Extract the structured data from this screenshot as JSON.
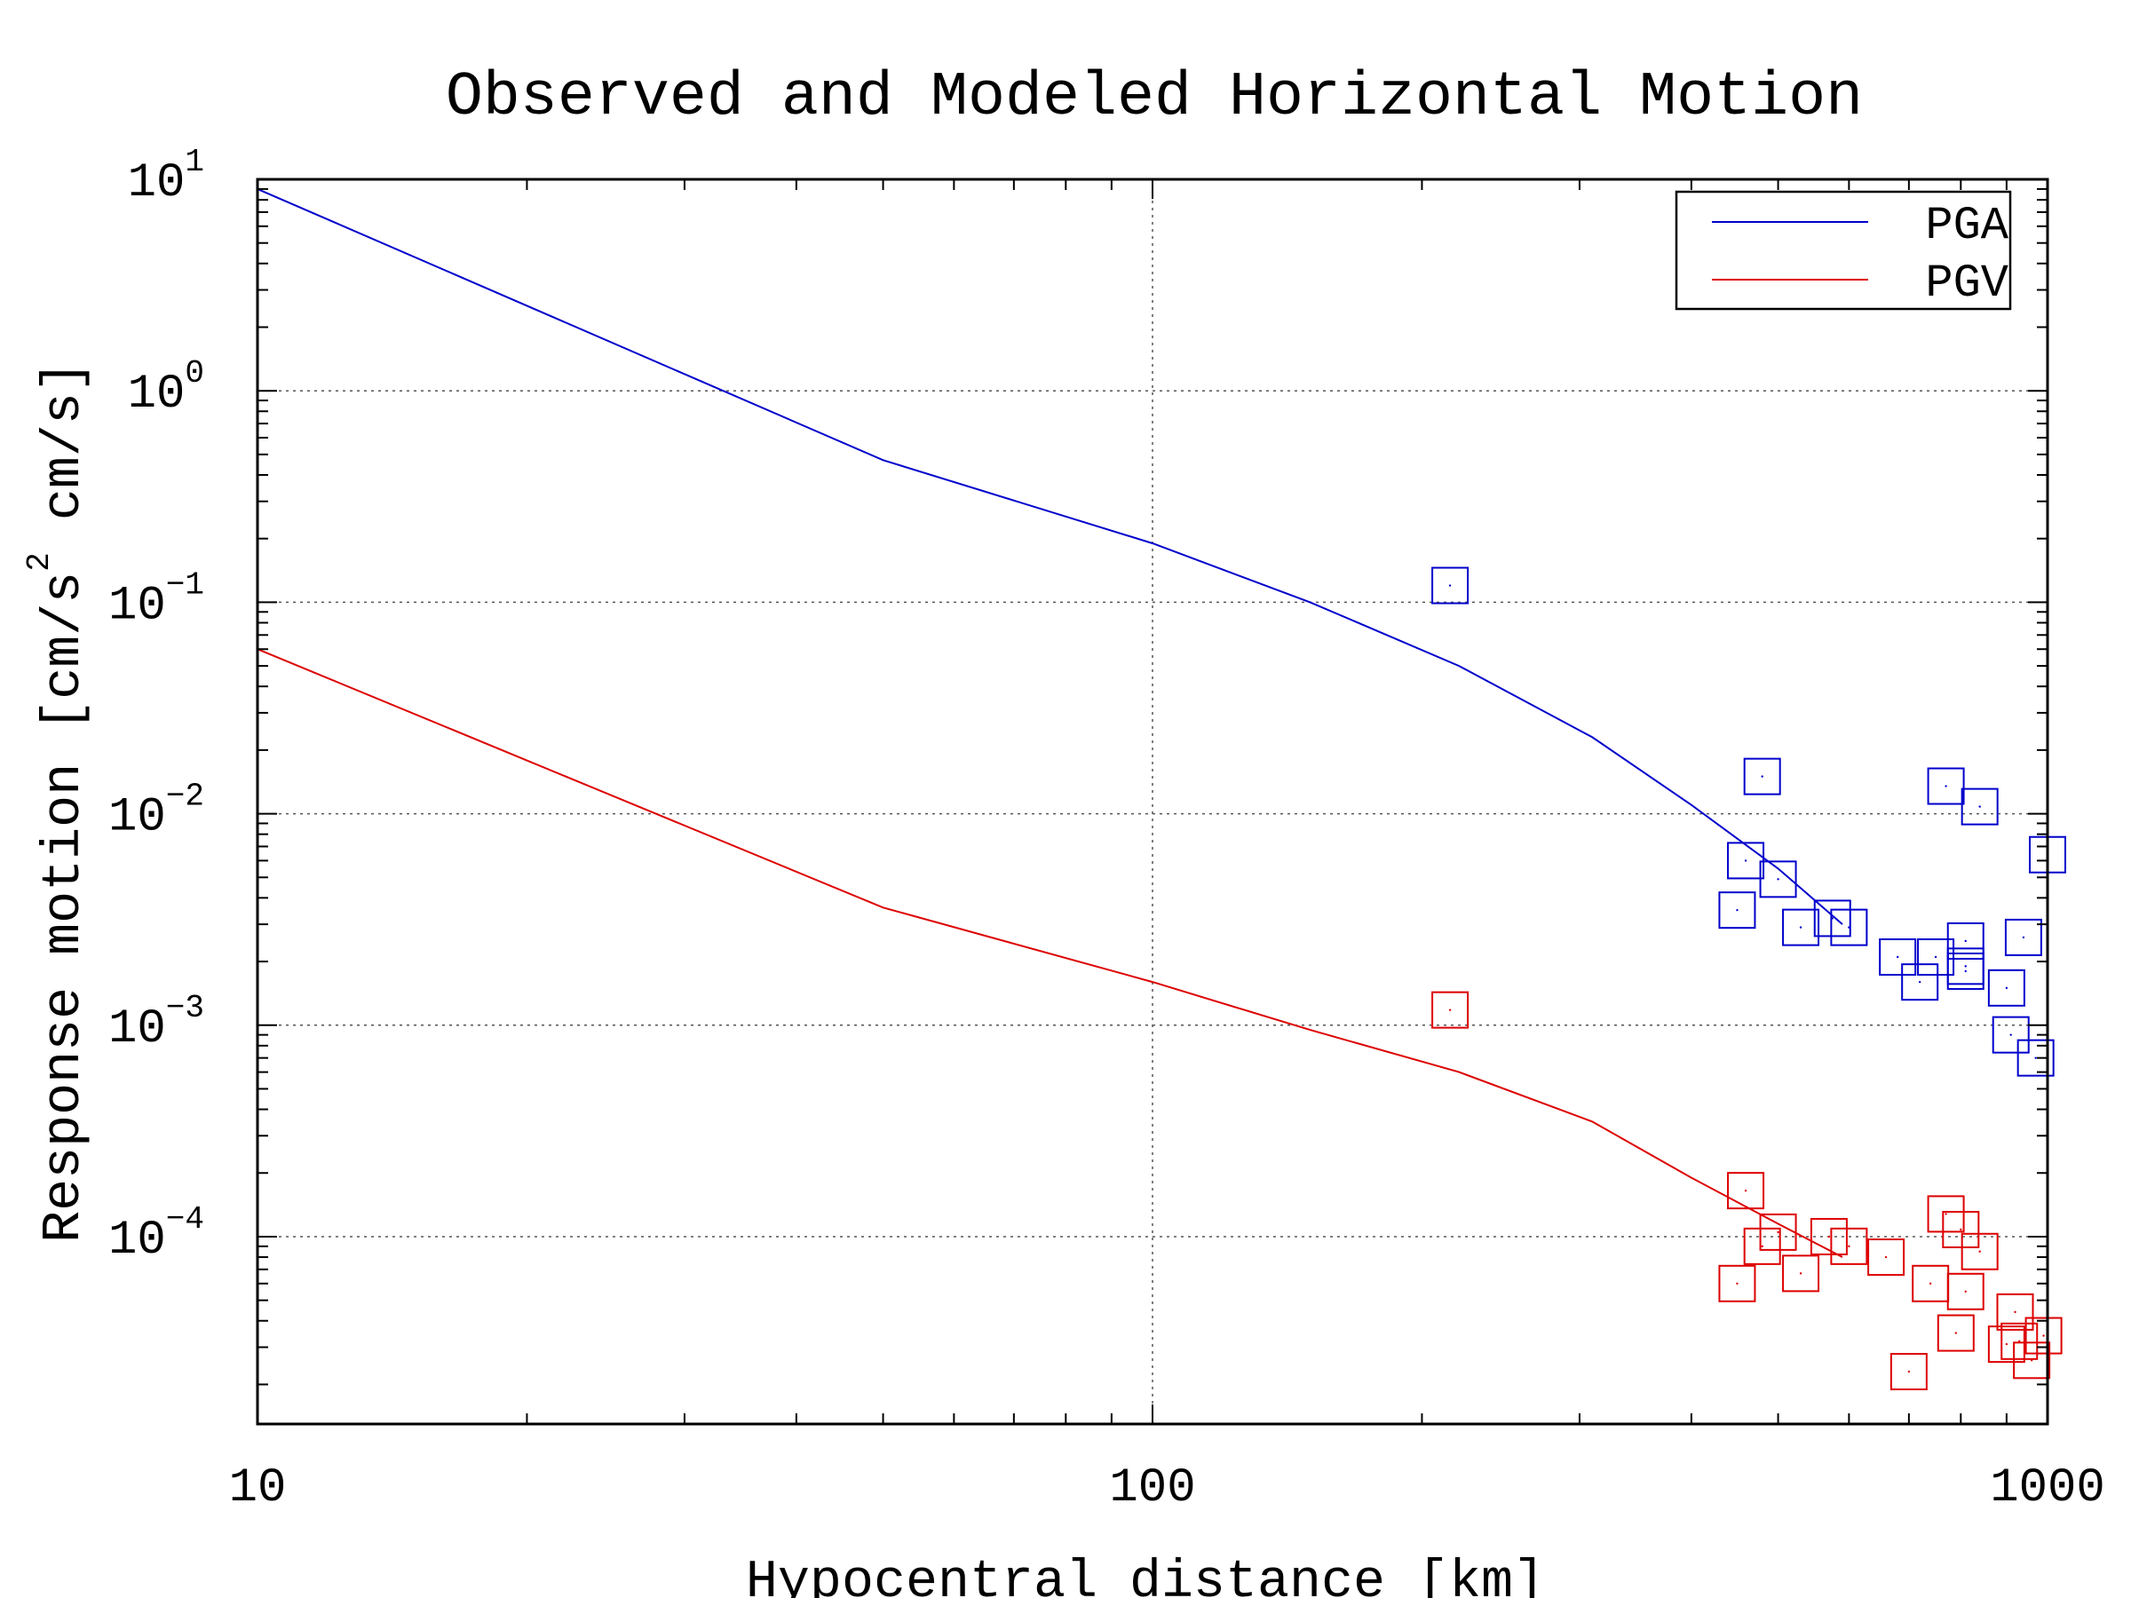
{
  "chart_data": {
    "type": "scatter",
    "title": "Observed and Modeled Horizontal Motion",
    "xlabel": "Hypocentral distance [km]",
    "ylabel": {
      "main": "Response motion  [cm/s",
      "superscript": "2",
      "tail": "  cm/s]"
    },
    "x_scale": "log",
    "y_scale": "log",
    "xlim": [
      10,
      1000
    ],
    "ylim": [
      1.3e-05,
      10
    ],
    "x_ticks": [
      {
        "value": 10,
        "label": "10"
      },
      {
        "value": 100,
        "label": "100"
      },
      {
        "value": 1000,
        "label": "1000"
      }
    ],
    "y_ticks": [
      {
        "value": 10,
        "base": "10",
        "exp": "1"
      },
      {
        "value": 1,
        "base": "10",
        "exp": "0"
      },
      {
        "value": 0.1,
        "base": "10",
        "exp": "−1"
      },
      {
        "value": 0.01,
        "base": "10",
        "exp": "−2"
      },
      {
        "value": 0.001,
        "base": "10",
        "exp": "−3"
      },
      {
        "value": 0.0001,
        "base": "10",
        "exp": "−4"
      }
    ],
    "grid": true,
    "legend_position": "top-right",
    "series": [
      {
        "name": "PGA",
        "color": "#0000cc",
        "model_line": [
          [
            10,
            9.0
          ],
          [
            50,
            0.47
          ],
          [
            100,
            0.19
          ],
          [
            150,
            0.1
          ],
          [
            220,
            0.05
          ],
          [
            310,
            0.023
          ],
          [
            400,
            0.011
          ],
          [
            500,
            0.0055
          ],
          [
            590,
            0.003
          ]
        ],
        "observed": [
          [
            215,
            0.12
          ],
          [
            480,
            0.015
          ],
          [
            460,
            0.006
          ],
          [
            450,
            0.0035
          ],
          [
            500,
            0.0049
          ],
          [
            530,
            0.0029
          ],
          [
            575,
            0.0032
          ],
          [
            600,
            0.0029
          ],
          [
            680,
            0.0021
          ],
          [
            720,
            0.0016
          ],
          [
            750,
            0.0021
          ],
          [
            770,
            0.0135
          ],
          [
            810,
            0.0019
          ],
          [
            810,
            0.0025
          ],
          [
            810,
            0.0018
          ],
          [
            840,
            0.0108
          ],
          [
            900,
            0.0015
          ],
          [
            910,
            0.0009
          ],
          [
            940,
            0.0026
          ],
          [
            970,
            0.0007
          ],
          [
            1000,
            0.0064
          ]
        ]
      },
      {
        "name": "PGV",
        "color": "#dd0000",
        "model_line": [
          [
            10,
            0.06
          ],
          [
            50,
            0.0036
          ],
          [
            100,
            0.0016
          ],
          [
            150,
            0.00095
          ],
          [
            220,
            0.0006
          ],
          [
            310,
            0.00035
          ],
          [
            400,
            0.00019
          ],
          [
            500,
            0.000115
          ],
          [
            590,
            8e-05
          ]
        ],
        "observed": [
          [
            215,
            0.00118
          ],
          [
            460,
            0.000165
          ],
          [
            450,
            6e-05
          ],
          [
            480,
            9e-05
          ],
          [
            500,
            0.000105
          ],
          [
            530,
            6.7e-05
          ],
          [
            570,
            0.0001
          ],
          [
            600,
            9e-05
          ],
          [
            660,
            8e-05
          ],
          [
            700,
            2.3e-05
          ],
          [
            740,
            6e-05
          ],
          [
            770,
            0.000128
          ],
          [
            790,
            3.5e-05
          ],
          [
            800,
            0.000108
          ],
          [
            810,
            5.5e-05
          ],
          [
            840,
            8.5e-05
          ],
          [
            900,
            3.1e-05
          ],
          [
            920,
            4.4e-05
          ],
          [
            930,
            3.2e-05
          ],
          [
            960,
            2.6e-05
          ],
          [
            990,
            3.4e-05
          ]
        ]
      }
    ]
  }
}
